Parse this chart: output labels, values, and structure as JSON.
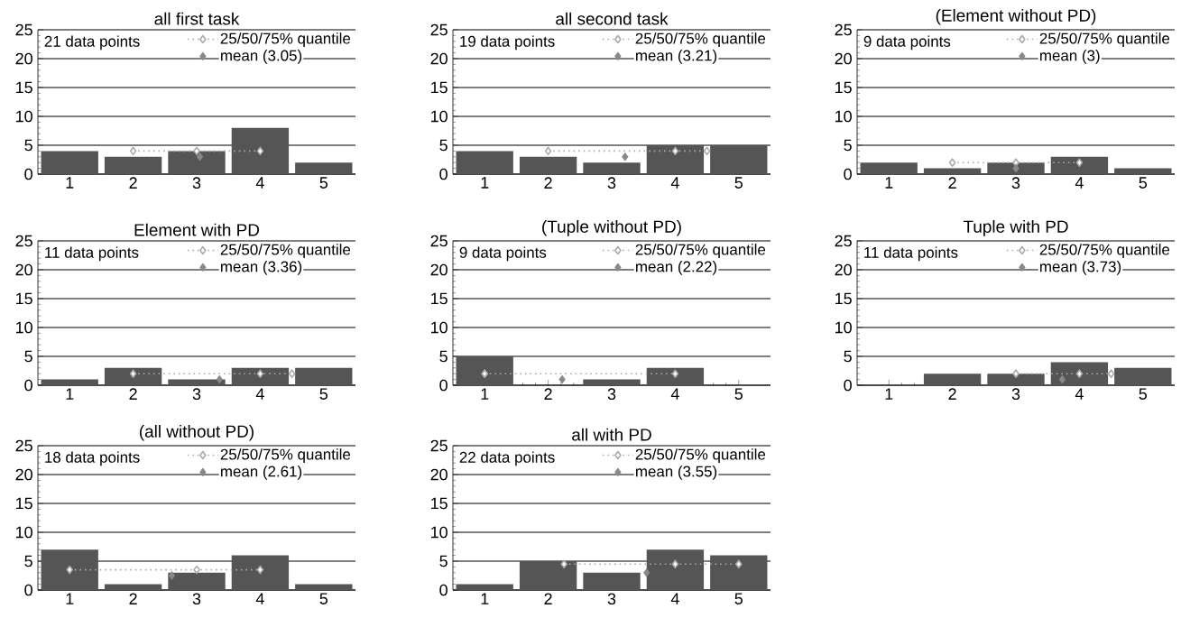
{
  "chart_data": [
    {
      "type": "bar",
      "title": "all first task",
      "x": [
        1,
        2,
        3,
        4,
        5
      ],
      "xlim": [
        0.5,
        5.5
      ],
      "xticks": [
        1,
        2,
        3,
        4,
        5
      ],
      "ylim": [
        0,
        25
      ],
      "yticks": [
        0,
        5,
        10,
        15,
        20,
        25
      ],
      "grid": "y",
      "legend": "top right",
      "annotations": [
        "21 data points"
      ],
      "series": [
        {
          "color": "#555555",
          "values": [
            4,
            3,
            4,
            8,
            2
          ]
        },
        {
          "type": "line",
          "name": "25/50/75% quantile",
          "color": "#aaaaaa",
          "marker": "diamond",
          "line_style": "dotted",
          "x": [
            2,
            3,
            4
          ],
          "values": [
            4,
            4,
            4
          ]
        },
        {
          "type": "scatter",
          "name": "mean (3.05)",
          "color": "#888888",
          "marker": "diamond",
          "x": [
            3.05
          ],
          "values": [
            3
          ]
        }
      ]
    },
    {
      "type": "bar",
      "title": "all second task",
      "x": [
        1,
        2,
        3,
        4,
        5
      ],
      "xlim": [
        0.5,
        5.5
      ],
      "xticks": [
        1,
        2,
        3,
        4,
        5
      ],
      "ylim": [
        0,
        25
      ],
      "yticks": [
        0,
        5,
        10,
        15,
        20,
        25
      ],
      "grid": "y",
      "legend": "top right",
      "annotations": [
        "19 data points"
      ],
      "series": [
        {
          "color": "#555555",
          "values": [
            4,
            3,
            2,
            5,
            5
          ]
        },
        {
          "type": "line",
          "name": "25/50/75% quantile",
          "color": "#aaaaaa",
          "marker": "diamond",
          "line_style": "dotted",
          "x": [
            2,
            4,
            4.5
          ],
          "values": [
            4,
            4,
            4
          ]
        },
        {
          "type": "scatter",
          "name": "mean (3.21)",
          "color": "#888888",
          "marker": "diamond",
          "x": [
            3.21
          ],
          "values": [
            3
          ]
        }
      ]
    },
    {
      "type": "bar",
      "title": "(Element without PD)",
      "x": [
        1,
        2,
        3,
        4,
        5
      ],
      "xlim": [
        0.5,
        5.5
      ],
      "xticks": [
        1,
        2,
        3,
        4,
        5
      ],
      "ylim": [
        0,
        25
      ],
      "yticks": [
        0,
        5,
        10,
        15,
        20,
        25
      ],
      "grid": "y",
      "legend": "top right",
      "annotations": [
        "9 data points"
      ],
      "series": [
        {
          "color": "#555555",
          "values": [
            2,
            1,
            2,
            3,
            1
          ]
        },
        {
          "type": "line",
          "name": "25/50/75% quantile",
          "color": "#aaaaaa",
          "marker": "diamond",
          "line_style": "dotted",
          "x": [
            2,
            3,
            4
          ],
          "values": [
            2,
            2,
            2
          ]
        },
        {
          "type": "scatter",
          "name": "mean (3)",
          "color": "#888888",
          "marker": "diamond",
          "x": [
            3
          ],
          "values": [
            1
          ]
        }
      ]
    },
    {
      "type": "bar",
      "title": "Element with PD",
      "x": [
        1,
        2,
        3,
        4,
        5
      ],
      "xlim": [
        0.5,
        5.5
      ],
      "xticks": [
        1,
        2,
        3,
        4,
        5
      ],
      "ylim": [
        0,
        25
      ],
      "yticks": [
        0,
        5,
        10,
        15,
        20,
        25
      ],
      "grid": "y",
      "legend": "top right",
      "annotations": [
        "11 data points"
      ],
      "series": [
        {
          "color": "#555555",
          "values": [
            1,
            3,
            1,
            3,
            3
          ]
        },
        {
          "type": "line",
          "name": "25/50/75% quantile",
          "color": "#aaaaaa",
          "marker": "diamond",
          "line_style": "dotted",
          "x": [
            2,
            4,
            4.5
          ],
          "values": [
            2,
            2,
            2
          ]
        },
        {
          "type": "scatter",
          "name": "mean (3.36)",
          "color": "#888888",
          "marker": "diamond",
          "x": [
            3.36
          ],
          "values": [
            1
          ]
        }
      ]
    },
    {
      "type": "bar",
      "title": "(Tuple without PD)",
      "x": [
        1,
        2,
        3,
        4,
        5
      ],
      "xlim": [
        0.5,
        5.5
      ],
      "xticks": [
        1,
        2,
        3,
        4,
        5
      ],
      "ylim": [
        0,
        25
      ],
      "yticks": [
        0,
        5,
        10,
        15,
        20,
        25
      ],
      "grid": "y",
      "legend": "top right",
      "annotations": [
        "9 data points"
      ],
      "series": [
        {
          "color": "#555555",
          "values": [
            5,
            0,
            1,
            3,
            0
          ]
        },
        {
          "type": "line",
          "name": "25/50/75% quantile",
          "color": "#aaaaaa",
          "marker": "diamond",
          "line_style": "dotted",
          "x": [
            1,
            1,
            4
          ],
          "values": [
            2,
            2,
            2
          ]
        },
        {
          "type": "scatter",
          "name": "mean (2.22)",
          "color": "#888888",
          "marker": "diamond",
          "x": [
            2.22
          ],
          "values": [
            1
          ]
        }
      ]
    },
    {
      "type": "bar",
      "title": "Tuple with PD",
      "x": [
        1,
        2,
        3,
        4,
        5
      ],
      "xlim": [
        0.5,
        5.5
      ],
      "xticks": [
        1,
        2,
        3,
        4,
        5
      ],
      "ylim": [
        0,
        25
      ],
      "yticks": [
        0,
        5,
        10,
        15,
        20,
        25
      ],
      "grid": "y",
      "legend": "top right",
      "annotations": [
        "11 data points"
      ],
      "series": [
        {
          "color": "#555555",
          "values": [
            0,
            2,
            2,
            4,
            3
          ]
        },
        {
          "type": "line",
          "name": "25/50/75% quantile",
          "color": "#aaaaaa",
          "marker": "diamond",
          "line_style": "dotted",
          "x": [
            3,
            4,
            4.5
          ],
          "values": [
            2,
            2,
            2
          ]
        },
        {
          "type": "scatter",
          "name": "mean (3.73)",
          "color": "#888888",
          "marker": "diamond",
          "x": [
            3.73
          ],
          "values": [
            1
          ]
        }
      ]
    },
    {
      "type": "bar",
      "title": "(all without PD)",
      "x": [
        1,
        2,
        3,
        4,
        5
      ],
      "xlim": [
        0.5,
        5.5
      ],
      "xticks": [
        1,
        2,
        3,
        4,
        5
      ],
      "ylim": [
        0,
        25
      ],
      "yticks": [
        0,
        5,
        10,
        15,
        20,
        25
      ],
      "grid": "y",
      "legend": "top right",
      "annotations": [
        "18 data points"
      ],
      "series": [
        {
          "color": "#555555",
          "values": [
            7,
            1,
            3,
            6,
            1
          ]
        },
        {
          "type": "line",
          "name": "25/50/75% quantile",
          "color": "#aaaaaa",
          "marker": "diamond",
          "line_style": "dotted",
          "x": [
            1,
            3,
            4
          ],
          "values": [
            3.5,
            3.5,
            3.5
          ]
        },
        {
          "type": "scatter",
          "name": "mean (2.61)",
          "color": "#888888",
          "marker": "diamond",
          "x": [
            2.61
          ],
          "values": [
            2.5
          ]
        }
      ]
    },
    {
      "type": "bar",
      "title": "all with PD",
      "x": [
        1,
        2,
        3,
        4,
        5
      ],
      "xlim": [
        0.5,
        5.5
      ],
      "xticks": [
        1,
        2,
        3,
        4,
        5
      ],
      "ylim": [
        0,
        25
      ],
      "yticks": [
        0,
        5,
        10,
        15,
        20,
        25
      ],
      "grid": "y",
      "legend": "top right",
      "annotations": [
        "22 data points"
      ],
      "series": [
        {
          "color": "#555555",
          "values": [
            1,
            5,
            3,
            7,
            6
          ]
        },
        {
          "type": "line",
          "name": "25/50/75% quantile",
          "color": "#aaaaaa",
          "marker": "diamond",
          "line_style": "dotted",
          "x": [
            2.25,
            4,
            5
          ],
          "values": [
            4.5,
            4.5,
            4.5
          ]
        },
        {
          "type": "scatter",
          "name": "mean (3.55)",
          "color": "#888888",
          "marker": "diamond",
          "x": [
            3.55
          ],
          "values": [
            3
          ]
        }
      ]
    }
  ]
}
